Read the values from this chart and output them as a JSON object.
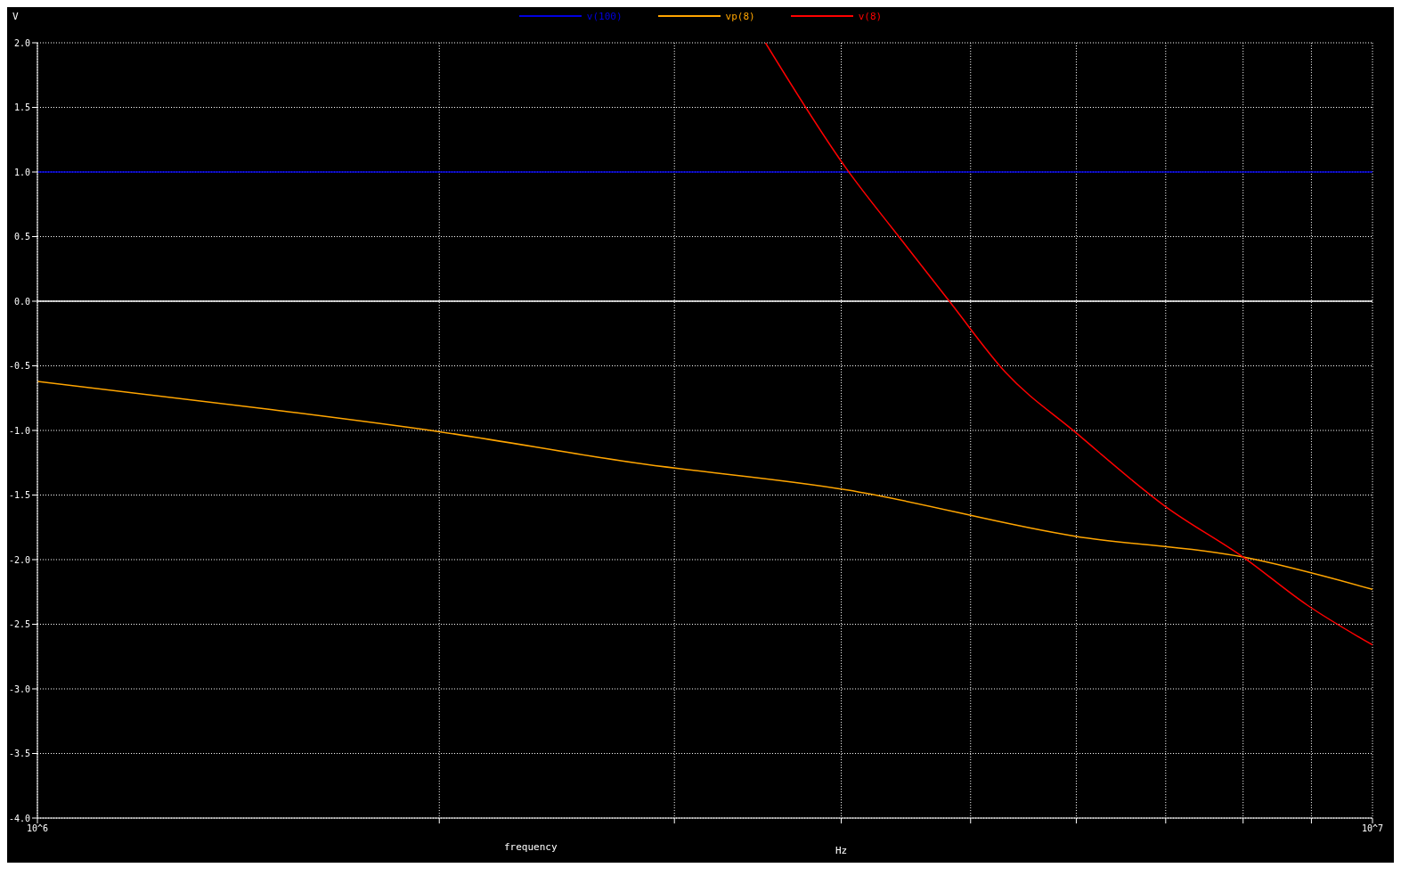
{
  "chart_data": {
    "type": "line",
    "ylabel": "V",
    "xlabel": "frequency",
    "annotations": [
      "Hz"
    ],
    "log": "x",
    "grid": true,
    "legend": "top",
    "marker": "none",
    "line_style": "solid",
    "xlim": [
      1000000,
      10000000
    ],
    "xticks": [
      {
        "value": 1000000,
        "label": "10^6"
      },
      {
        "value": 2000000,
        "label": null
      },
      {
        "value": 3000000,
        "label": null
      },
      {
        "value": 4000000,
        "label": null
      },
      {
        "value": 5000000,
        "label": null
      },
      {
        "value": 6000000,
        "label": null
      },
      {
        "value": 7000000,
        "label": null
      },
      {
        "value": 8000000,
        "label": null
      },
      {
        "value": 9000000,
        "label": null
      },
      {
        "value": 10000000,
        "label": "10^7"
      }
    ],
    "ylim": [
      -4,
      2
    ],
    "yticks": [
      {
        "value": -4,
        "label": "-4.0"
      },
      -3.5,
      {
        "value": -3,
        "label": "-3.0"
      },
      -2.5,
      {
        "value": -2,
        "label": "-2.0"
      },
      -1.5,
      {
        "value": -1,
        "label": "-1.0"
      },
      -0.5,
      {
        "value": 0,
        "label": "0.0"
      },
      0.5,
      {
        "value": 1,
        "label": "1.0"
      },
      1.5,
      {
        "value": 2,
        "label": "2.0"
      }
    ],
    "ref_lines": [
      {
        "axis": "y",
        "value": 0,
        "color": "#ffffff",
        "line_style": "solid"
      }
    ],
    "series": [
      {
        "name": "v(100)",
        "color": "#0000e0",
        "x": [
          1000000,
          10000000
        ],
        "values": [
          1.0,
          1.0
        ]
      },
      {
        "name": "vp(8)",
        "color": "#ffa500",
        "x": [
          1000000,
          1500000,
          2000000,
          2800000,
          4040000,
          6000000,
          8000000,
          10000000
        ],
        "values": [
          -0.62,
          -0.84,
          -1.01,
          -1.25,
          -1.46,
          -1.82,
          -1.98,
          -2.23
        ]
      },
      {
        "name": "v(8)",
        "color": "#ff0000",
        "x": [
          3510000,
          4040000,
          4410000,
          4820000,
          5310000,
          6000000,
          7000000,
          8000000,
          8930000,
          10000000
        ],
        "values": [
          2.0,
          1.02,
          0.51,
          0.0,
          -0.55,
          -1.02,
          -1.59,
          -1.98,
          -2.35,
          -2.66
        ]
      }
    ]
  }
}
